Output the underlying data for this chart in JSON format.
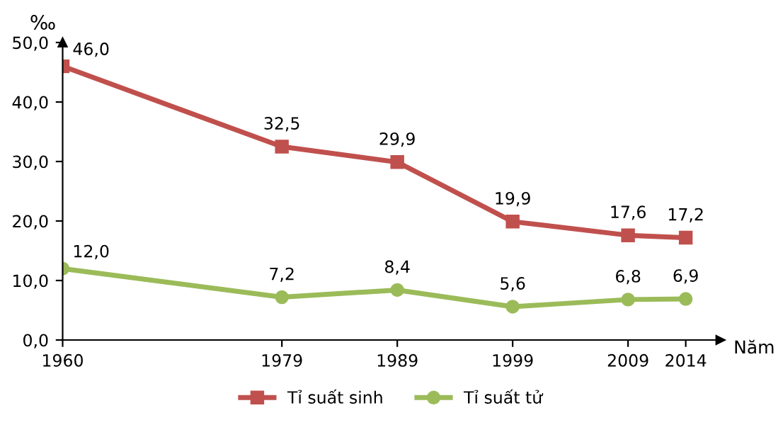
{
  "chart_data": {
    "type": "line",
    "xlabel": "Năm",
    "ylabel": "‰",
    "x": [
      1960,
      1979,
      1989,
      1999,
      2009,
      2014
    ],
    "series": [
      {
        "name": "Tỉ suất sinh",
        "color": "#c0504d",
        "marker": "square",
        "values": [
          46.0,
          32.5,
          29.9,
          19.9,
          17.6,
          17.2
        ],
        "value_labels": [
          "46,0",
          "32,5",
          "29,9",
          "19,9",
          "17,6",
          "17,2"
        ]
      },
      {
        "name": "Tỉ suất tử",
        "color": "#9bbb59",
        "marker": "circle",
        "values": [
          12.0,
          7.2,
          8.4,
          5.6,
          6.8,
          6.9
        ],
        "value_labels": [
          "12,0",
          "7,2",
          "8,4",
          "5,6",
          "6,8",
          "6,9"
        ]
      }
    ],
    "xlim": [
      1960,
      2017
    ],
    "xticks": [
      1960,
      1979,
      1989,
      1999,
      2009,
      2014
    ],
    "ylim": [
      0,
      50
    ],
    "yticks": [
      {
        "value": 0,
        "label": "0,0"
      },
      {
        "value": 10,
        "label": "10,0"
      },
      {
        "value": 20,
        "label": "20,0"
      },
      {
        "value": 30,
        "label": "30,0"
      },
      {
        "value": 40,
        "label": "40,0"
      },
      {
        "value": 50,
        "label": "50,0"
      }
    ],
    "grid": false,
    "legend": "bottom",
    "line_style": "solid"
  }
}
